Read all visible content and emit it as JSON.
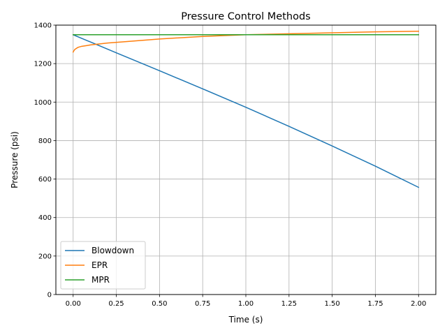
{
  "chart_data": {
    "type": "line",
    "title": "Pressure Control Methods",
    "xlabel": "Time (s)",
    "ylabel": "Pressure (psi)",
    "xlim": [
      -0.1,
      2.1
    ],
    "ylim": [
      0,
      1400
    ],
    "xticks": [
      0.0,
      0.25,
      0.5,
      0.75,
      1.0,
      1.25,
      1.5,
      1.75,
      2.0
    ],
    "xtick_labels": [
      "0.00",
      "0.25",
      "0.50",
      "0.75",
      "1.00",
      "1.25",
      "1.50",
      "1.75",
      "2.00"
    ],
    "yticks": [
      0,
      200,
      400,
      600,
      800,
      1000,
      1200,
      1400
    ],
    "ytick_labels": [
      "0",
      "200",
      "400",
      "600",
      "800",
      "1000",
      "1200",
      "1400"
    ],
    "grid": true,
    "legend_position": "lower-left",
    "series": [
      {
        "name": "Blowdown",
        "color": "#1f77b4",
        "x": [
          0.0,
          0.25,
          0.5,
          0.75,
          1.0,
          1.25,
          1.5,
          1.75,
          2.0
        ],
        "y": [
          1350,
          1256,
          1163,
          1069,
          973,
          874,
          772,
          667,
          557
        ]
      },
      {
        "name": "EPR",
        "color": "#ff7f0e",
        "x": [
          0.0,
          0.005,
          0.01,
          0.02,
          0.03,
          0.05,
          0.08,
          0.1,
          0.15,
          0.2,
          0.3,
          0.5,
          0.75,
          1.0,
          1.25,
          1.5,
          1.75,
          2.0
        ],
        "y": [
          1260,
          1268,
          1274,
          1280,
          1285,
          1290,
          1294,
          1297,
          1302,
          1307,
          1314,
          1328,
          1341,
          1350,
          1355,
          1360,
          1365,
          1368
        ]
      },
      {
        "name": "MPR",
        "color": "#2ca02c",
        "x": [
          0.0,
          2.0
        ],
        "y": [
          1350,
          1350
        ]
      }
    ]
  }
}
